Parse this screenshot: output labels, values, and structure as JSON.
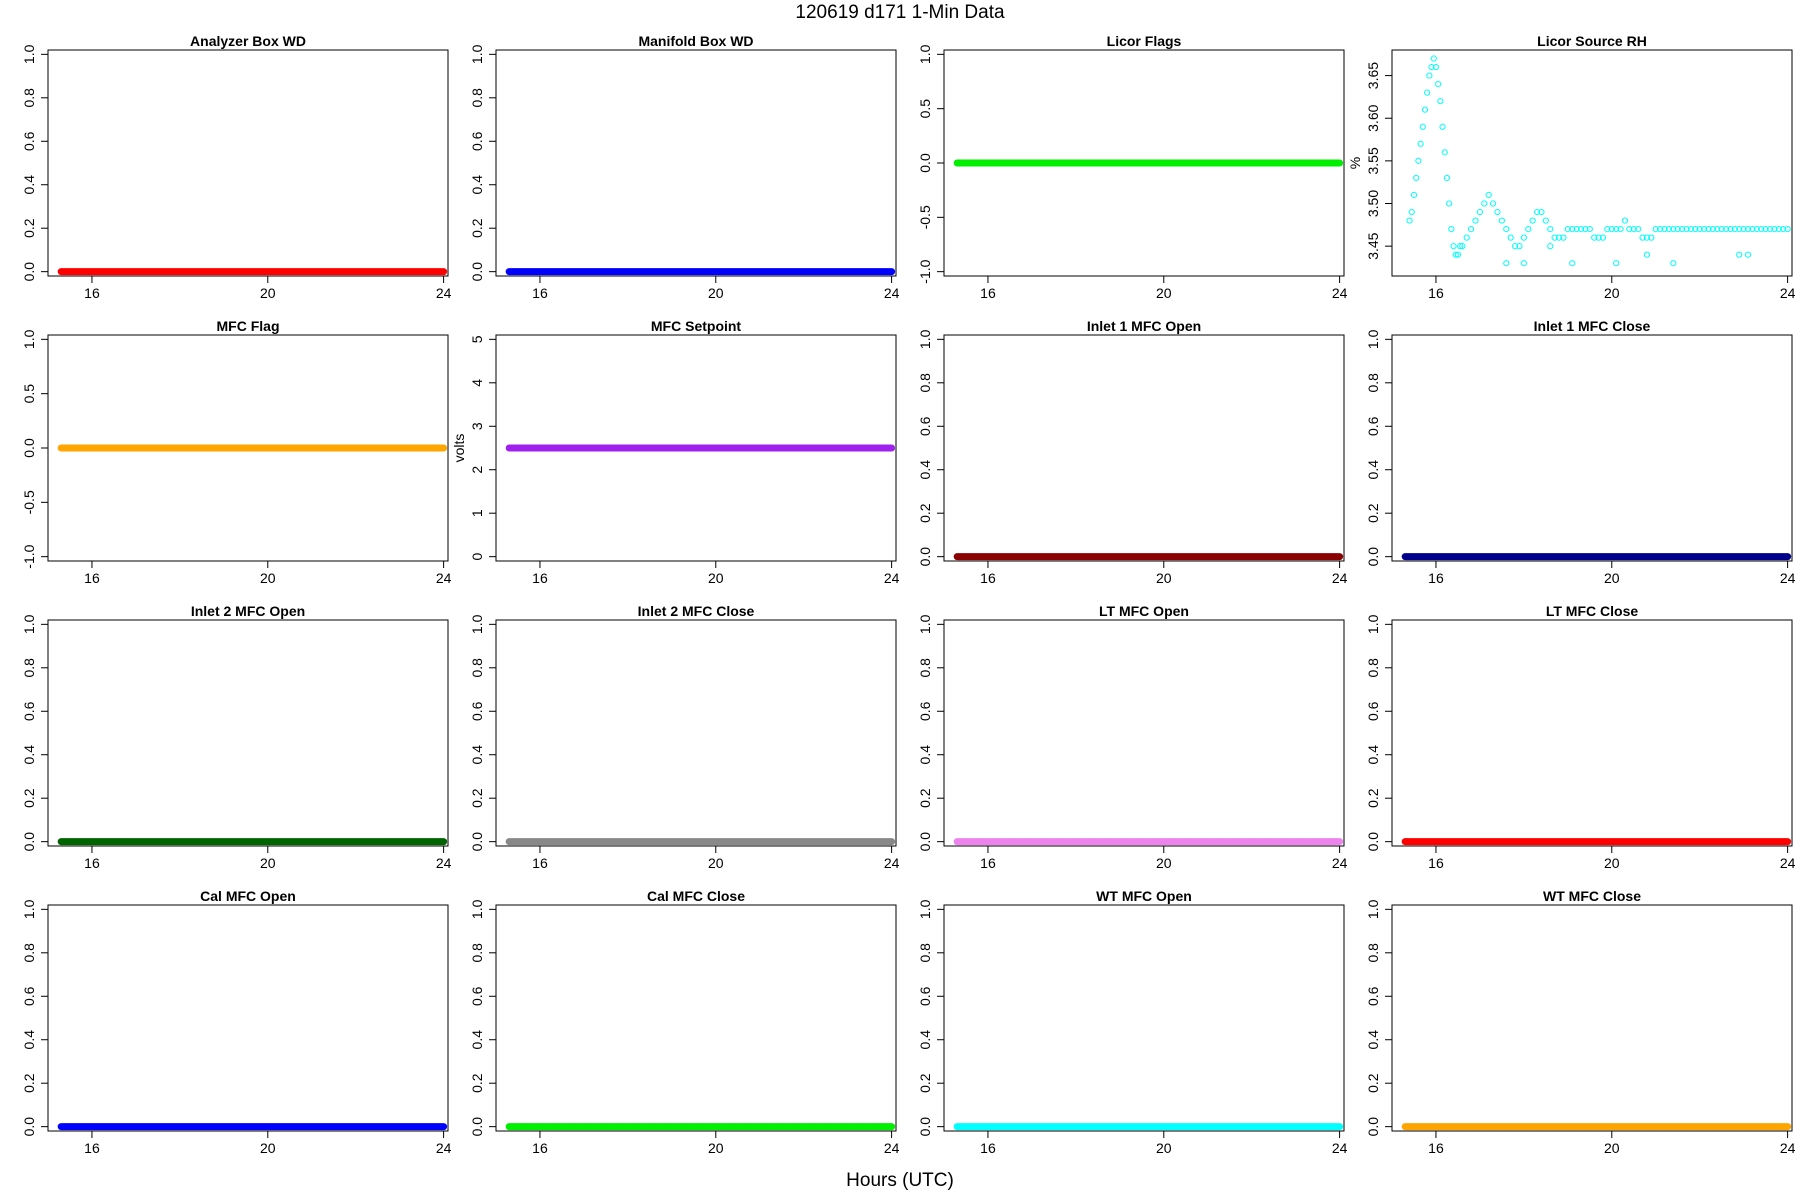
{
  "figure": {
    "title": "120619   d171   1-Min Data",
    "xlabel": "Hours (UTC)"
  },
  "chart_data": [
    {
      "type": "scatter",
      "title": "Analyzer Box WD",
      "ylabel": "",
      "xlim": [
        15,
        24.1
      ],
      "ylim": [
        -0.02,
        1.02
      ],
      "xticks": [
        16,
        20,
        24
      ],
      "yticks": [
        0.0,
        0.2,
        0.4,
        0.6,
        0.8,
        1.0
      ],
      "ytick_labels": [
        "0.0",
        "0.2",
        "0.4",
        "0.6",
        "0.8",
        "1.0"
      ],
      "color": "#FF0000",
      "series": [
        {
          "x_range": [
            15.3,
            24
          ],
          "value": 0
        }
      ]
    },
    {
      "type": "scatter",
      "title": "Manifold Box WD",
      "ylabel": "",
      "xlim": [
        15,
        24.1
      ],
      "ylim": [
        -0.02,
        1.02
      ],
      "xticks": [
        16,
        20,
        24
      ],
      "yticks": [
        0.0,
        0.2,
        0.4,
        0.6,
        0.8,
        1.0
      ],
      "ytick_labels": [
        "0.0",
        "0.2",
        "0.4",
        "0.6",
        "0.8",
        "1.0"
      ],
      "color": "#0000FF",
      "series": [
        {
          "x_range": [
            15.3,
            24
          ],
          "value": 0
        }
      ]
    },
    {
      "type": "scatter",
      "title": "Licor Flags",
      "ylabel": "",
      "xlim": [
        15,
        24.1
      ],
      "ylim": [
        -1.04,
        1.04
      ],
      "xticks": [
        16,
        20,
        24
      ],
      "yticks": [
        -1.0,
        -0.5,
        0.0,
        0.5,
        1.0
      ],
      "ytick_labels": [
        "-1.0",
        "-0.5",
        "0.0",
        "0.5",
        "1.0"
      ],
      "color": "#00EE00",
      "series": [
        {
          "x_range": [
            15.3,
            24
          ],
          "value": 0
        }
      ]
    },
    {
      "type": "scatter",
      "title": "Licor Source RH",
      "ylabel": "%",
      "xlim": [
        15,
        24.1
      ],
      "ylim": [
        3.415,
        3.68
      ],
      "xticks": [
        16,
        20,
        24
      ],
      "yticks": [
        3.45,
        3.5,
        3.55,
        3.6,
        3.65
      ],
      "ytick_labels": [
        "3.45",
        "3.50",
        "3.55",
        "3.60",
        "3.65"
      ],
      "color": "#00FFFF",
      "hollow": true,
      "points": [
        [
          15.4,
          3.48
        ],
        [
          15.45,
          3.49
        ],
        [
          15.5,
          3.51
        ],
        [
          15.55,
          3.53
        ],
        [
          15.6,
          3.55
        ],
        [
          15.65,
          3.57
        ],
        [
          15.7,
          3.59
        ],
        [
          15.75,
          3.61
        ],
        [
          15.8,
          3.63
        ],
        [
          15.85,
          3.65
        ],
        [
          15.9,
          3.66
        ],
        [
          15.95,
          3.67
        ],
        [
          16.0,
          3.66
        ],
        [
          16.05,
          3.64
        ],
        [
          16.1,
          3.62
        ],
        [
          16.15,
          3.59
        ],
        [
          16.2,
          3.56
        ],
        [
          16.25,
          3.53
        ],
        [
          16.3,
          3.5
        ],
        [
          16.35,
          3.47
        ],
        [
          16.4,
          3.45
        ],
        [
          16.45,
          3.44
        ],
        [
          16.5,
          3.44
        ],
        [
          16.55,
          3.45
        ],
        [
          16.6,
          3.45
        ],
        [
          16.7,
          3.46
        ],
        [
          16.8,
          3.47
        ],
        [
          16.9,
          3.48
        ],
        [
          17.0,
          3.49
        ],
        [
          17.1,
          3.5
        ],
        [
          17.2,
          3.51
        ],
        [
          17.3,
          3.5
        ],
        [
          17.4,
          3.49
        ],
        [
          17.5,
          3.48
        ],
        [
          17.6,
          3.47
        ],
        [
          17.7,
          3.46
        ],
        [
          17.8,
          3.45
        ],
        [
          17.9,
          3.45
        ],
        [
          18.0,
          3.46
        ],
        [
          18.1,
          3.47
        ],
        [
          18.2,
          3.48
        ],
        [
          18.3,
          3.49
        ],
        [
          18.4,
          3.49
        ],
        [
          18.5,
          3.48
        ],
        [
          18.6,
          3.47
        ],
        [
          18.7,
          3.46
        ],
        [
          18.8,
          3.46
        ],
        [
          18.9,
          3.46
        ],
        [
          19.0,
          3.47
        ],
        [
          19.1,
          3.47
        ],
        [
          19.2,
          3.47
        ],
        [
          19.3,
          3.47
        ],
        [
          19.4,
          3.47
        ],
        [
          19.5,
          3.47
        ],
        [
          19.6,
          3.46
        ],
        [
          19.7,
          3.46
        ],
        [
          19.8,
          3.46
        ],
        [
          19.9,
          3.47
        ],
        [
          20.0,
          3.47
        ],
        [
          20.1,
          3.47
        ],
        [
          20.2,
          3.47
        ],
        [
          20.3,
          3.48
        ],
        [
          20.4,
          3.47
        ],
        [
          20.5,
          3.47
        ],
        [
          20.6,
          3.47
        ],
        [
          20.7,
          3.46
        ],
        [
          20.8,
          3.46
        ],
        [
          20.9,
          3.46
        ],
        [
          21.0,
          3.47
        ],
        [
          21.1,
          3.47
        ],
        [
          21.2,
          3.47
        ],
        [
          21.3,
          3.47
        ],
        [
          21.4,
          3.47
        ],
        [
          21.5,
          3.47
        ],
        [
          21.6,
          3.47
        ],
        [
          21.7,
          3.47
        ],
        [
          21.8,
          3.47
        ],
        [
          21.9,
          3.47
        ],
        [
          22.0,
          3.47
        ],
        [
          22.1,
          3.47
        ],
        [
          22.2,
          3.47
        ],
        [
          22.3,
          3.47
        ],
        [
          22.4,
          3.47
        ],
        [
          22.5,
          3.47
        ],
        [
          22.6,
          3.47
        ],
        [
          22.7,
          3.47
        ],
        [
          22.8,
          3.47
        ],
        [
          22.9,
          3.47
        ],
        [
          23.0,
          3.47
        ],
        [
          23.1,
          3.47
        ],
        [
          23.2,
          3.47
        ],
        [
          23.3,
          3.47
        ],
        [
          23.4,
          3.47
        ],
        [
          23.5,
          3.47
        ],
        [
          23.6,
          3.47
        ],
        [
          23.7,
          3.47
        ],
        [
          23.8,
          3.47
        ],
        [
          23.9,
          3.47
        ],
        [
          24.0,
          3.47
        ],
        [
          17.6,
          3.43
        ],
        [
          18.0,
          3.43
        ],
        [
          18.6,
          3.45
        ],
        [
          19.1,
          3.43
        ],
        [
          20.1,
          3.43
        ],
        [
          20.8,
          3.44
        ],
        [
          21.4,
          3.43
        ],
        [
          22.9,
          3.44
        ],
        [
          23.1,
          3.44
        ]
      ]
    },
    {
      "type": "scatter",
      "title": "MFC Flag",
      "ylabel": "",
      "xlim": [
        15,
        24.1
      ],
      "ylim": [
        -1.04,
        1.04
      ],
      "xticks": [
        16,
        20,
        24
      ],
      "yticks": [
        -1.0,
        -0.5,
        0.0,
        0.5,
        1.0
      ],
      "ytick_labels": [
        "-1.0",
        "-0.5",
        "0.0",
        "0.5",
        "1.0"
      ],
      "color": "#FFA500",
      "series": [
        {
          "x_range": [
            15.3,
            24
          ],
          "value": 0
        }
      ]
    },
    {
      "type": "scatter",
      "title": "MFC Setpoint",
      "ylabel": "volts",
      "xlim": [
        15,
        24.1
      ],
      "ylim": [
        -0.1,
        5.1
      ],
      "xticks": [
        16,
        20,
        24
      ],
      "yticks": [
        0,
        1,
        2,
        3,
        4,
        5
      ],
      "ytick_labels": [
        "0",
        "1",
        "2",
        "3",
        "4",
        "5"
      ],
      "color": "#A020F0",
      "series": [
        {
          "x_range": [
            15.3,
            24
          ],
          "value": 2.5
        }
      ]
    },
    {
      "type": "scatter",
      "title": "Inlet 1 MFC Open",
      "ylabel": "",
      "xlim": [
        15,
        24.1
      ],
      "ylim": [
        -0.02,
        1.02
      ],
      "xticks": [
        16,
        20,
        24
      ],
      "yticks": [
        0.0,
        0.2,
        0.4,
        0.6,
        0.8,
        1.0
      ],
      "ytick_labels": [
        "0.0",
        "0.2",
        "0.4",
        "0.6",
        "0.8",
        "1.0"
      ],
      "color": "#8B0000",
      "series": [
        {
          "x_range": [
            15.3,
            24
          ],
          "value": 0
        }
      ]
    },
    {
      "type": "scatter",
      "title": "Inlet 1 MFC Close",
      "ylabel": "",
      "xlim": [
        15,
        24.1
      ],
      "ylim": [
        -0.02,
        1.02
      ],
      "xticks": [
        16,
        20,
        24
      ],
      "yticks": [
        0.0,
        0.2,
        0.4,
        0.6,
        0.8,
        1.0
      ],
      "ytick_labels": [
        "0.0",
        "0.2",
        "0.4",
        "0.6",
        "0.8",
        "1.0"
      ],
      "color": "#00008B",
      "series": [
        {
          "x_range": [
            15.3,
            24
          ],
          "value": 0
        }
      ]
    },
    {
      "type": "scatter",
      "title": "Inlet 2 MFC Open",
      "ylabel": "",
      "xlim": [
        15,
        24.1
      ],
      "ylim": [
        -0.02,
        1.02
      ],
      "xticks": [
        16,
        20,
        24
      ],
      "yticks": [
        0.0,
        0.2,
        0.4,
        0.6,
        0.8,
        1.0
      ],
      "ytick_labels": [
        "0.0",
        "0.2",
        "0.4",
        "0.6",
        "0.8",
        "1.0"
      ],
      "color": "#006400",
      "series": [
        {
          "x_range": [
            15.3,
            24
          ],
          "value": 0
        }
      ]
    },
    {
      "type": "scatter",
      "title": "Inlet 2 MFC Close",
      "ylabel": "",
      "xlim": [
        15,
        24.1
      ],
      "ylim": [
        -0.02,
        1.02
      ],
      "xticks": [
        16,
        20,
        24
      ],
      "yticks": [
        0.0,
        0.2,
        0.4,
        0.6,
        0.8,
        1.0
      ],
      "ytick_labels": [
        "0.0",
        "0.2",
        "0.4",
        "0.6",
        "0.8",
        "1.0"
      ],
      "color": "#888888",
      "series": [
        {
          "x_range": [
            15.3,
            24
          ],
          "value": 0
        }
      ]
    },
    {
      "type": "scatter",
      "title": "LT MFC Open",
      "ylabel": "",
      "xlim": [
        15,
        24.1
      ],
      "ylim": [
        -0.02,
        1.02
      ],
      "xticks": [
        16,
        20,
        24
      ],
      "yticks": [
        0.0,
        0.2,
        0.4,
        0.6,
        0.8,
        1.0
      ],
      "ytick_labels": [
        "0.0",
        "0.2",
        "0.4",
        "0.6",
        "0.8",
        "1.0"
      ],
      "color": "#EE82EE",
      "series": [
        {
          "x_range": [
            15.3,
            24
          ],
          "value": 0
        }
      ]
    },
    {
      "type": "scatter",
      "title": "LT MFC Close",
      "ylabel": "",
      "xlim": [
        15,
        24.1
      ],
      "ylim": [
        -0.02,
        1.02
      ],
      "xticks": [
        16,
        20,
        24
      ],
      "yticks": [
        0.0,
        0.2,
        0.4,
        0.6,
        0.8,
        1.0
      ],
      "ytick_labels": [
        "0.0",
        "0.2",
        "0.4",
        "0.6",
        "0.8",
        "1.0"
      ],
      "color": "#FF0000",
      "series": [
        {
          "x_range": [
            15.3,
            24
          ],
          "value": 0
        }
      ]
    },
    {
      "type": "scatter",
      "title": "Cal MFC Open",
      "ylabel": "",
      "xlim": [
        15,
        24.1
      ],
      "ylim": [
        -0.02,
        1.02
      ],
      "xticks": [
        16,
        20,
        24
      ],
      "yticks": [
        0.0,
        0.2,
        0.4,
        0.6,
        0.8,
        1.0
      ],
      "ytick_labels": [
        "0.0",
        "0.2",
        "0.4",
        "0.6",
        "0.8",
        "1.0"
      ],
      "color": "#0000FF",
      "series": [
        {
          "x_range": [
            15.3,
            24
          ],
          "value": 0
        }
      ]
    },
    {
      "type": "scatter",
      "title": "Cal MFC Close",
      "ylabel": "",
      "xlim": [
        15,
        24.1
      ],
      "ylim": [
        -0.02,
        1.02
      ],
      "xticks": [
        16,
        20,
        24
      ],
      "yticks": [
        0.0,
        0.2,
        0.4,
        0.6,
        0.8,
        1.0
      ],
      "ytick_labels": [
        "0.0",
        "0.2",
        "0.4",
        "0.6",
        "0.8",
        "1.0"
      ],
      "color": "#00EE00",
      "series": [
        {
          "x_range": [
            15.3,
            24
          ],
          "value": 0
        }
      ]
    },
    {
      "type": "scatter",
      "title": "WT MFC Open",
      "ylabel": "",
      "xlim": [
        15,
        24.1
      ],
      "ylim": [
        -0.02,
        1.02
      ],
      "xticks": [
        16,
        20,
        24
      ],
      "yticks": [
        0.0,
        0.2,
        0.4,
        0.6,
        0.8,
        1.0
      ],
      "ytick_labels": [
        "0.0",
        "0.2",
        "0.4",
        "0.6",
        "0.8",
        "1.0"
      ],
      "color": "#00FFFF",
      "series": [
        {
          "x_range": [
            15.3,
            24
          ],
          "value": 0
        }
      ]
    },
    {
      "type": "scatter",
      "title": "WT MFC Close",
      "ylabel": "",
      "xlim": [
        15,
        24.1
      ],
      "ylim": [
        -0.02,
        1.02
      ],
      "xticks": [
        16,
        20,
        24
      ],
      "yticks": [
        0.0,
        0.2,
        0.4,
        0.6,
        0.8,
        1.0
      ],
      "ytick_labels": [
        "0.0",
        "0.2",
        "0.4",
        "0.6",
        "0.8",
        "1.0"
      ],
      "color": "#FFA500",
      "series": [
        {
          "x_range": [
            15.3,
            24
          ],
          "value": 0
        }
      ]
    }
  ]
}
